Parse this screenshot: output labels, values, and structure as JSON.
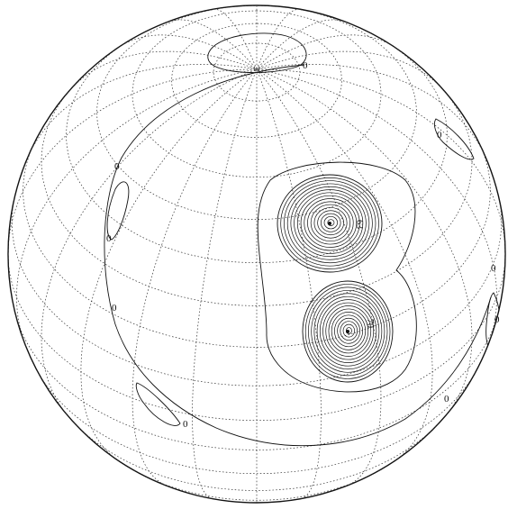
{
  "figure": {
    "labels": {
      "zero_1": "0",
      "zero_2": "0",
      "zero_3": "0",
      "zero_4": "0",
      "zero_5": "0",
      "zero_6": "0",
      "zero_7": "0",
      "zero_8": "0",
      "zero_9": "0",
      "peak_upper": "63",
      "peak_lower": "70"
    }
  }
}
